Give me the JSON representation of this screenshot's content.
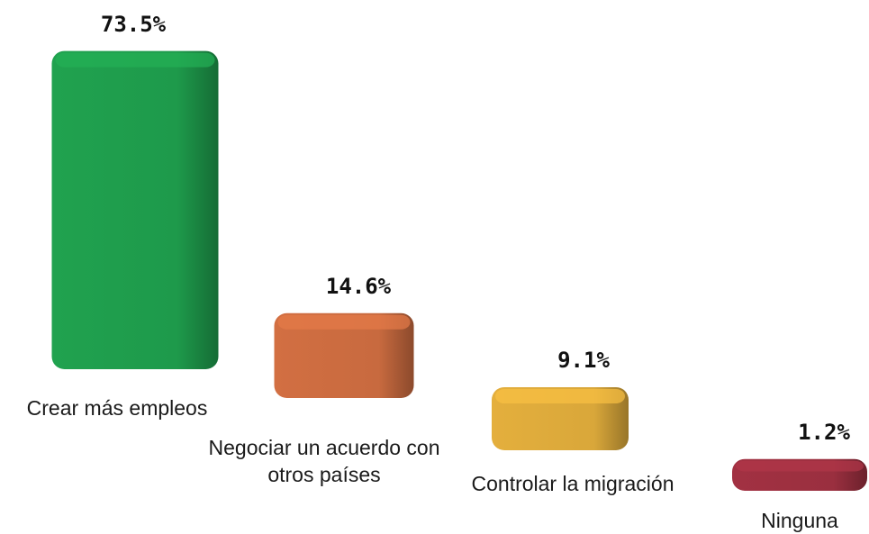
{
  "chart_data": {
    "type": "bar3d",
    "categories": [
      "Crear más empleos",
      "Negociar un acuerdo con otros países",
      "Controlar la migración",
      "Ninguna"
    ],
    "values": [
      73.5,
      14.6,
      9.1,
      1.2
    ],
    "value_labels": [
      "73.5%",
      "14.6%",
      "9.1%",
      "1.2%"
    ],
    "colors": [
      "#1e9a4b",
      "#c86a3f",
      "#d9a73a",
      "#9a2f3f"
    ]
  }
}
